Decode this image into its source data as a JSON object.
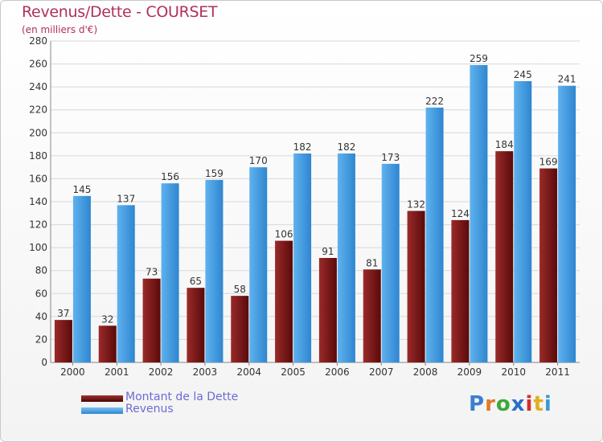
{
  "header": {
    "title": "Revenus/Dette - COURSET",
    "subtitle": "(en milliers d'€)"
  },
  "logo": {
    "letters": [
      "P",
      "r",
      "o",
      "x",
      "i",
      "t",
      "i"
    ],
    "colors": [
      "#3a7fd0",
      "#e07a2a",
      "#3fa83a",
      "#2a6fc8",
      "#d0302a",
      "#e0b020",
      "#3a9ad0"
    ]
  },
  "colors": {
    "dette": "#7a1a1a",
    "revenus": "#4aa3e6",
    "grid": "#d8d8d8",
    "text": "#333333"
  },
  "chart_data": {
    "type": "bar",
    "title": "Revenus/Dette - COURSET",
    "subtitle": "(en milliers d'€)",
    "categories": [
      "2000",
      "2001",
      "2002",
      "2003",
      "2004",
      "2005",
      "2006",
      "2007",
      "2008",
      "2009",
      "2010",
      "2011"
    ],
    "series": [
      {
        "name": "Montant de la Dette",
        "values": [
          37,
          32,
          73,
          65,
          58,
          106,
          91,
          81,
          132,
          124,
          184,
          169
        ]
      },
      {
        "name": "Revenus",
        "values": [
          145,
          137,
          156,
          159,
          170,
          182,
          182,
          173,
          222,
          259,
          245,
          241
        ]
      }
    ],
    "yticks": [
      0,
      20,
      40,
      60,
      80,
      100,
      120,
      140,
      160,
      180,
      200,
      220,
      240,
      260,
      280
    ],
    "ylim": [
      0,
      280
    ],
    "grid": true,
    "legend": "bottom-left"
  }
}
